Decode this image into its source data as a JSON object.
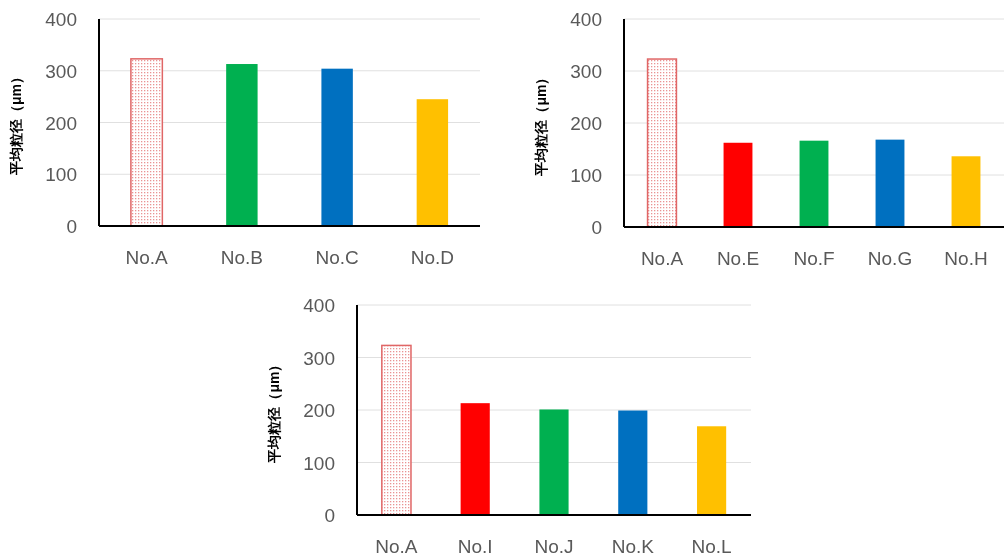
{
  "chart_data": [
    {
      "type": "bar",
      "ylabel": "平均粒径（μm）",
      "categories": [
        "No.A",
        "No.B",
        "No.C",
        "No.D"
      ],
      "values": [
        323,
        313,
        304,
        245
      ],
      "colors": [
        "#e06666",
        "#00b050",
        "#0070c0",
        "#ffc000"
      ],
      "ylim": [
        0,
        400
      ],
      "yticks": [
        0,
        100,
        200,
        300,
        400
      ],
      "grid": "y"
    },
    {
      "type": "bar",
      "ylabel": "平均粒径（μm）",
      "categories": [
        "No.A",
        "No.E",
        "No.F",
        "No.G",
        "No.H"
      ],
      "values": [
        323,
        162,
        166,
        168,
        136
      ],
      "colors": [
        "#e06666",
        "#ff0000",
        "#00b050",
        "#0070c0",
        "#ffc000"
      ],
      "ylim": [
        0,
        400
      ],
      "yticks": [
        0,
        100,
        200,
        300,
        400
      ],
      "grid": "y"
    },
    {
      "type": "bar",
      "ylabel": "平均粒径（μm）",
      "categories": [
        "No.A",
        "No.I",
        "No.J",
        "No.K",
        "No.L"
      ],
      "values": [
        323,
        213,
        201,
        199,
        169
      ],
      "colors": [
        "#e06666",
        "#ff0000",
        "#00b050",
        "#0070c0",
        "#ffc000"
      ],
      "ylim": [
        0,
        400
      ],
      "yticks": [
        0,
        100,
        200,
        300,
        400
      ],
      "grid": "y"
    }
  ]
}
